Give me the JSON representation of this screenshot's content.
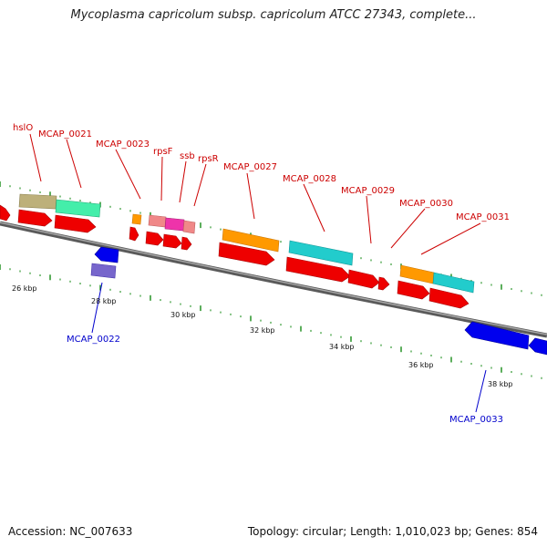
{
  "title": "Mycoplasma capricolum subsp. capricolum ATCC 27343, complete...",
  "footer": {
    "accession": "Accession: NC_007633",
    "stats": "Topology: circular; Length: 1,010,023 bp; Genes: 854"
  },
  "colors": {
    "backbone": "#808080",
    "forward_label": "#cc0000",
    "reverse_label": "#0000cc",
    "cds_arrow": "#ee0000",
    "reverse_arrow": "#0000ee",
    "tick_mark": "#339933"
  },
  "kbp_labels": [
    "26 kbp",
    "28 kbp",
    "30 kbp",
    "32 kbp",
    "34 kbp",
    "36 kbp",
    "38 kbp"
  ],
  "gene_labels": {
    "hslO": "hslO",
    "mcap_0021": "MCAP_0021",
    "mcap_0022": "MCAP_0022",
    "mcap_0023": "MCAP_0023",
    "rpsF": "rpsF",
    "ssb": "ssb",
    "rpsR": "rpsR",
    "mcap_0027": "MCAP_0027",
    "mcap_0028": "MCAP_0028",
    "mcap_0029": "MCAP_0029",
    "mcap_0030": "MCAP_0030",
    "mcap_0031": "MCAP_0031",
    "mcap_0033": "MCAP_0033"
  }
}
